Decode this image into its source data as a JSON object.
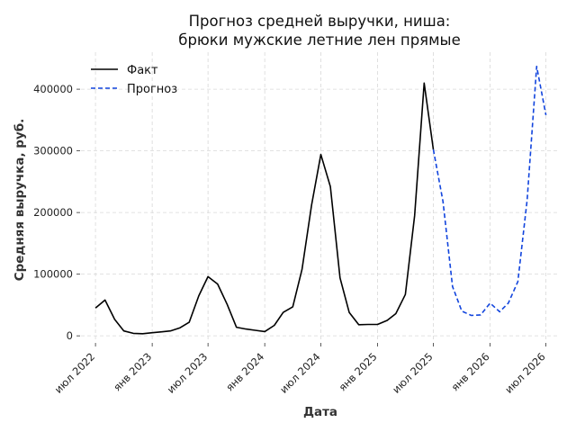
{
  "chart_data": {
    "type": "line",
    "title": [
      "Прогноз средней выручки, ниша:",
      "брюки мужские летние лен прямые"
    ],
    "xlabel": "Дата",
    "ylabel": "Средняя выручка, руб.",
    "x_tick_labels": [
      "июл 2022",
      "янв 2023",
      "июл 2023",
      "янв 2024",
      "июл 2024",
      "янв 2025",
      "июл 2025",
      "янв 2026",
      "июл 2026"
    ],
    "y_ticks": [
      0,
      100000,
      200000,
      300000,
      400000
    ],
    "ylim": [
      -10000,
      460000
    ],
    "xlim": [
      "2022-05-15",
      "2026-08-15"
    ],
    "grid": true,
    "legend_position": "top-left",
    "series": [
      {
        "name": "Факт",
        "color": "#000000",
        "style": "solid",
        "x": [
          "2022-07",
          "2022-08",
          "2022-09",
          "2022-10",
          "2022-11",
          "2022-12",
          "2023-01",
          "2023-02",
          "2023-03",
          "2023-04",
          "2023-05",
          "2023-06",
          "2023-07",
          "2023-08",
          "2023-09",
          "2023-10",
          "2023-11",
          "2023-12",
          "2024-01",
          "2024-02",
          "2024-03",
          "2024-04",
          "2024-05",
          "2024-06",
          "2024-07",
          "2024-08",
          "2024-09",
          "2024-10",
          "2024-11",
          "2024-12",
          "2025-01",
          "2025-02",
          "2025-03",
          "2025-04",
          "2025-05",
          "2025-06",
          "2025-07"
        ],
        "values": [
          45000,
          58000,
          27000,
          8000,
          4000,
          3500,
          5000,
          6500,
          8000,
          13000,
          22000,
          65000,
          96000,
          84000,
          51000,
          14000,
          11000,
          9000,
          7000,
          17000,
          38000,
          47000,
          108000,
          212000,
          294000,
          242000,
          94000,
          38000,
          18000,
          18500,
          18500,
          25000,
          36000,
          67000,
          195000,
          410000,
          302000
        ]
      },
      {
        "name": "Прогноз",
        "color": "#1144dd",
        "style": "dashed",
        "x": [
          "2025-07",
          "2025-08",
          "2025-09",
          "2025-10",
          "2025-11",
          "2025-12",
          "2026-01",
          "2026-02",
          "2026-03",
          "2026-04",
          "2026-05",
          "2026-06",
          "2026-07"
        ],
        "values": [
          302000,
          218000,
          80000,
          40000,
          33000,
          34000,
          53000,
          39000,
          53000,
          88000,
          220000,
          437000,
          358000
        ]
      }
    ]
  }
}
